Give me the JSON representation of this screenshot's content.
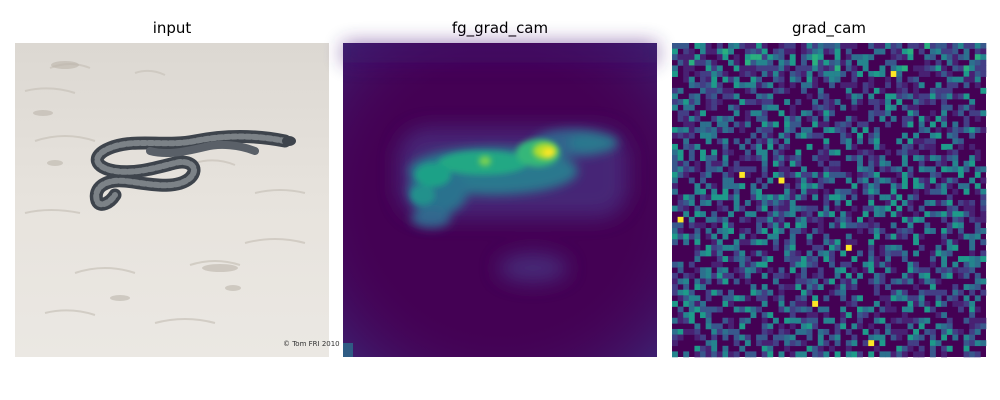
{
  "figure": {
    "panels": [
      {
        "title": "input"
      },
      {
        "title": "fg_grad_cam"
      },
      {
        "title": "grad_cam"
      }
    ],
    "watermark": "© Tom FRI 2010"
  },
  "colors": {
    "background": "#ffffff",
    "sand": "#e6e2dc",
    "snake_dark": "#4a4f57",
    "snake_light": "#9aa0a5",
    "viridis_low": "#440154",
    "viridis_mid": "#21918c",
    "viridis_high": "#fde725"
  }
}
